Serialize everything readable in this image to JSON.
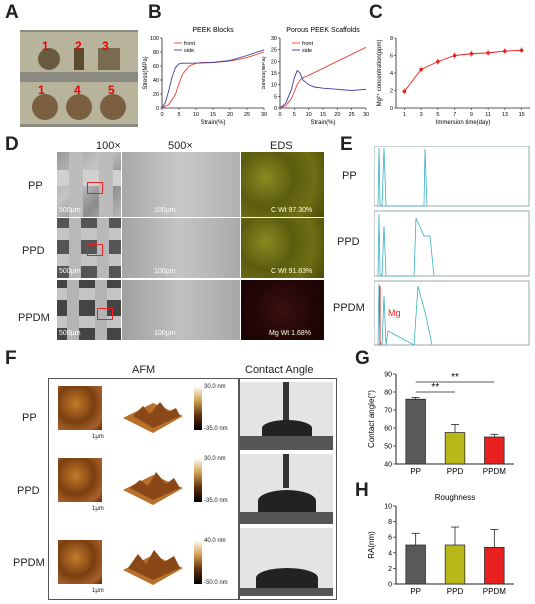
{
  "panels": {
    "A": "A",
    "B": "B",
    "C": "C",
    "D": "D",
    "E": "E",
    "F": "F",
    "G": "G",
    "H": "H"
  },
  "panelA": {
    "sample_labels": [
      "1",
      "2",
      "3",
      "1",
      "4",
      "5"
    ]
  },
  "panelD": {
    "col_headers": [
      "100×",
      "500×",
      "EDS"
    ],
    "rows": [
      "PP",
      "PPD",
      "PPDM"
    ],
    "scale_100x": "500μm",
    "scale_500x": "100μm",
    "eds_labels": [
      {
        "element": "C",
        "wt": "Wt 97.30%"
      },
      {
        "element": "C",
        "wt": "Wt 91.83%"
      },
      {
        "element": "Mg",
        "wt": "Wt 1.68%"
      }
    ]
  },
  "panelE": {
    "rows": [
      "PP",
      "PPD",
      "PPDM"
    ],
    "mg_label": "Mg"
  },
  "panelF": {
    "col_headers": [
      "AFM",
      "Contact Angle"
    ],
    "rows": [
      "PP",
      "PPD",
      "PPDM"
    ],
    "afm_scale": "1μm",
    "colorbars": [
      {
        "top": "30.0 nm",
        "bottom": "-35.0 nm"
      },
      {
        "top": "30.0 nm",
        "bottom": "-35.0 nm"
      },
      {
        "top": "40.0 nm",
        "bottom": "-50.0 nm"
      }
    ]
  },
  "colors": {
    "front": "#e8443a",
    "side": "#3b3f9e",
    "pp": "#5a5858",
    "ppd": "#b8b81a",
    "ppdm": "#e82020"
  },
  "chart_data": [
    {
      "id": "B1",
      "type": "line",
      "title": "PEEK Blocks",
      "xlabel": "Strain(%)",
      "ylabel": "Stress(MPa)",
      "xlim": [
        0,
        30
      ],
      "ylim": [
        0,
        100
      ],
      "xticks": [
        "0",
        "5",
        "10",
        "15",
        "20",
        "25",
        "30"
      ],
      "yticks": [
        "0",
        "20",
        "40",
        "60",
        "80",
        "100"
      ],
      "series": [
        {
          "name": "front",
          "x": [
            0,
            2,
            4,
            5,
            6,
            8,
            10,
            12,
            15,
            20,
            25,
            30
          ],
          "y": [
            0,
            5,
            20,
            35,
            48,
            60,
            64,
            65,
            65,
            67,
            72,
            80
          ]
        },
        {
          "name": "side",
          "x": [
            0,
            1,
            2,
            3,
            4,
            5,
            6,
            8,
            10,
            15,
            20,
            25,
            30
          ],
          "y": [
            0,
            8,
            25,
            45,
            58,
            63,
            64,
            64,
            64,
            65,
            68,
            75,
            83
          ]
        }
      ]
    },
    {
      "id": "B2",
      "type": "line",
      "title": "Porous PEEK Scaffolds",
      "xlabel": "Strain(%)",
      "ylabel": "Stress(MPa)",
      "xlim": [
        0,
        30
      ],
      "ylim": [
        0,
        30
      ],
      "xticks": [
        "0",
        "5",
        "10",
        "15",
        "20",
        "25",
        "30"
      ],
      "yticks": [
        "0",
        "5",
        "10",
        "15",
        "20",
        "25",
        "30"
      ],
      "series": [
        {
          "name": "front",
          "x": [
            0,
            2,
            4,
            5,
            6,
            7,
            8,
            10,
            15,
            20,
            25,
            30
          ],
          "y": [
            0,
            1,
            4,
            7,
            10,
            12,
            13,
            14,
            17,
            20,
            23,
            26
          ]
        },
        {
          "name": "side",
          "x": [
            0,
            2,
            4,
            5,
            6,
            7,
            8,
            10,
            12,
            15,
            20,
            25,
            30
          ],
          "y": [
            0,
            2,
            8,
            13,
            16,
            15,
            12,
            10,
            9,
            8.5,
            8,
            7.5,
            8
          ]
        }
      ]
    },
    {
      "id": "C",
      "type": "line",
      "title": "",
      "xlabel": "Immersion time(day)",
      "ylabel": "Mg²⁺ concentration(ppm)",
      "xlim": [
        0,
        16
      ],
      "ylim": [
        0,
        8
      ],
      "xticks": [
        "1",
        "3",
        "5",
        "7",
        "9",
        "11",
        "13",
        "15"
      ],
      "yticks": [
        "0",
        "2",
        "4",
        "6",
        "8"
      ],
      "series": [
        {
          "name": "",
          "x": [
            1,
            3,
            5,
            7,
            9,
            11,
            13,
            15
          ],
          "y": [
            1.9,
            4.4,
            5.3,
            6.0,
            6.2,
            6.3,
            6.5,
            6.6
          ]
        }
      ]
    },
    {
      "id": "G",
      "type": "bar",
      "title": "",
      "ylabel": "Contact angle(°)",
      "categories": [
        "PP",
        "PPD",
        "PPDM"
      ],
      "values": [
        76,
        57.5,
        55
      ],
      "errors": [
        1,
        4.5,
        1.5
      ],
      "ylim": [
        40,
        90
      ],
      "yticks": [
        "40",
        "50",
        "60",
        "70",
        "80",
        "90"
      ],
      "significance": [
        "**",
        "**"
      ]
    },
    {
      "id": "H",
      "type": "bar",
      "title": "Roughness",
      "ylabel": "RA(nm)",
      "categories": [
        "PP",
        "PPD",
        "PPDM"
      ],
      "values": [
        5,
        5,
        4.7
      ],
      "errors": [
        1.5,
        2.3,
        2.3
      ],
      "ylim": [
        0,
        10
      ],
      "yticks": [
        "0",
        "2",
        "4",
        "6",
        "8",
        "10"
      ]
    }
  ]
}
